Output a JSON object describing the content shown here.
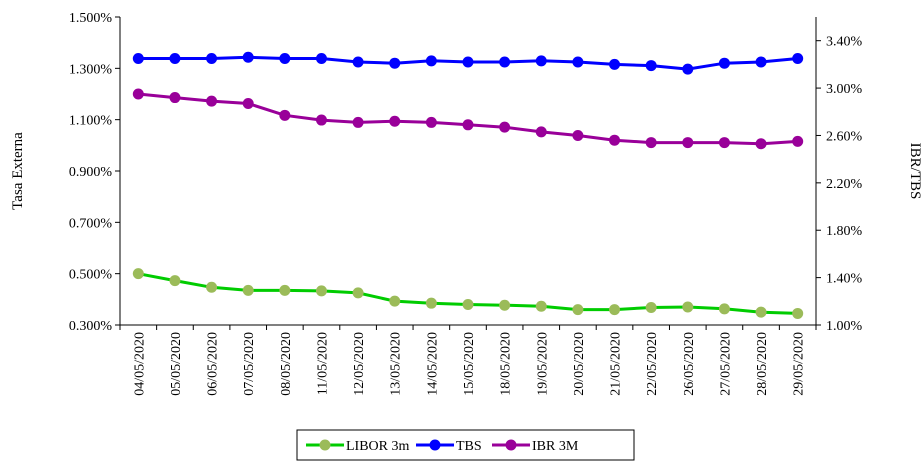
{
  "chart_data": {
    "type": "line",
    "categories": [
      "04/05/2020",
      "05/05/2020",
      "06/05/2020",
      "07/05/2020",
      "08/05/2020",
      "11/05/2020",
      "12/05/2020",
      "13/05/2020",
      "14/05/2020",
      "15/05/2020",
      "18/05/2020",
      "19/05/2020",
      "20/05/2020",
      "21/05/2020",
      "22/05/2020",
      "26/05/2020",
      "27/05/2020",
      "28/05/2020",
      "29/05/2020"
    ],
    "left_axis": {
      "label": "Tasa Externa",
      "ylim": [
        0.3,
        1.5
      ],
      "ticks": [
        0.3,
        0.5,
        0.7,
        0.9,
        1.1,
        1.3,
        1.5
      ],
      "tick_labels": [
        "0.300%",
        "0.500%",
        "0.700%",
        "0.900%",
        "1.100%",
        "1.300%",
        "1.500%"
      ]
    },
    "right_axis": {
      "label": "IBR/TBS",
      "ylim": [
        1.0,
        3.6
      ],
      "ticks": [
        1.0,
        1.4,
        1.8,
        2.2,
        2.6,
        3.0,
        3.4
      ],
      "tick_labels": [
        "1.00%",
        "1.40%",
        "1.80%",
        "2.20%",
        "2.60%",
        "3.00%",
        "3.40%"
      ]
    },
    "series": [
      {
        "name": "LIBOR 3m",
        "axis": "left",
        "color": "#00cc00",
        "marker_color": "#9bbb59",
        "values": [
          0.5,
          0.473,
          0.447,
          0.435,
          0.435,
          0.433,
          0.425,
          0.393,
          0.385,
          0.38,
          0.377,
          0.373,
          0.36,
          0.36,
          0.368,
          0.37,
          0.363,
          0.35,
          0.345
        ]
      },
      {
        "name": "TBS",
        "axis": "right",
        "color": "#0000ff",
        "marker_color": "#0000ff",
        "values": [
          3.25,
          3.25,
          3.25,
          3.26,
          3.25,
          3.25,
          3.22,
          3.21,
          3.23,
          3.22,
          3.22,
          3.23,
          3.22,
          3.2,
          3.19,
          3.16,
          3.21,
          3.22,
          3.25
        ]
      },
      {
        "name": "IBR 3M",
        "axis": "right",
        "color": "#990099",
        "marker_color": "#990099",
        "values": [
          2.95,
          2.92,
          2.89,
          2.87,
          2.77,
          2.73,
          2.71,
          2.72,
          2.71,
          2.69,
          2.67,
          2.63,
          2.6,
          2.56,
          2.54,
          2.54,
          2.54,
          2.53,
          2.55
        ]
      }
    ],
    "legend": "bottom-center",
    "grid": false
  }
}
